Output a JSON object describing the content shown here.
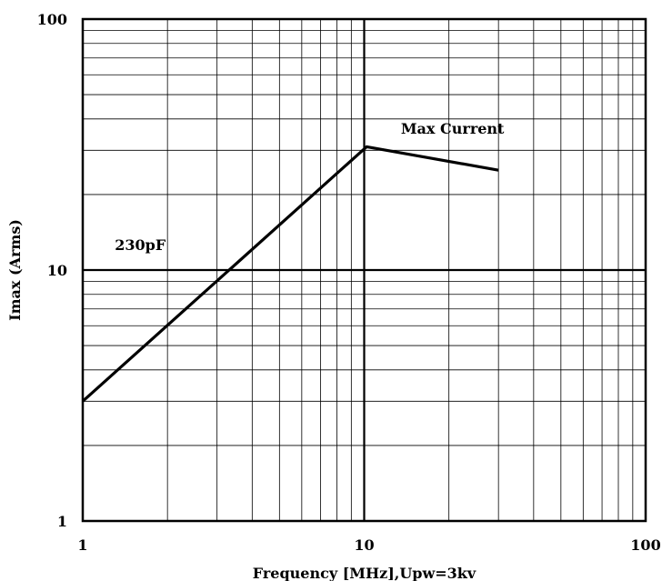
{
  "chart_data": {
    "type": "line",
    "xlabel": "Frequency [MHz],Upw=3kv",
    "ylabel": "Imax (Arms)",
    "x_scale": "log",
    "y_scale": "log",
    "xlim": [
      1,
      100
    ],
    "ylim": [
      1,
      100
    ],
    "grid": true,
    "x_ticks": [
      1,
      10,
      100
    ],
    "x_tick_labels": [
      "1",
      "10",
      "100"
    ],
    "y_ticks": [
      1,
      10,
      100
    ],
    "y_tick_labels": [
      "1",
      "10",
      "100"
    ],
    "series": [
      {
        "x": [
          1,
          10.2,
          30
        ],
        "y": [
          3.0,
          31,
          25
        ]
      }
    ],
    "annotations": [
      {
        "text": "230pF",
        "x": 1.3,
        "y": 12
      },
      {
        "text": "Max Current",
        "x": 13.5,
        "y": 35
      }
    ],
    "line_color": "#000000"
  }
}
